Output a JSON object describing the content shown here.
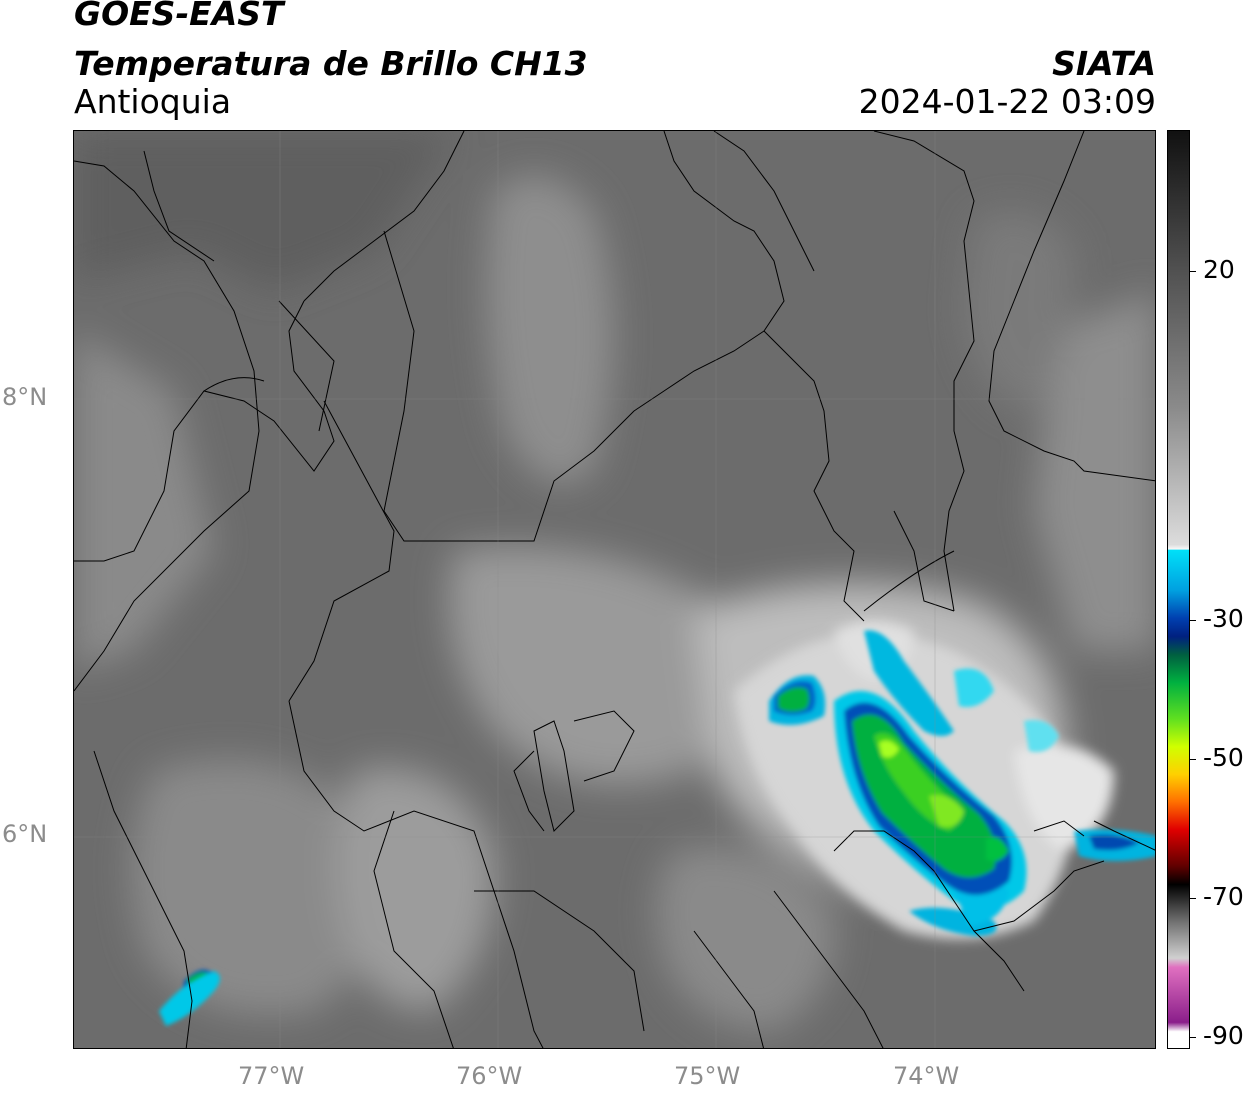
{
  "header": {
    "satellite": "GOES-EAST",
    "product": "Temperatura de Brillo CH13",
    "region": "Antioquia",
    "organization": "SIATA",
    "datetime": "2024-01-22 03:09"
  },
  "axes": {
    "lat_labels": [
      "8°N",
      "6°N"
    ],
    "lon_labels": [
      "77°W",
      "76°W",
      "75°W",
      "74°W"
    ]
  },
  "colorbar": {
    "tick_labels": [
      "20",
      "-30",
      "-50",
      "-70",
      "-90"
    ],
    "colors": {
      "warm_gray": "#6a6a6a",
      "light_gray": "#d8d8d8",
      "cyan": "#00d4f0",
      "blue": "#0032a0",
      "green": "#00c040",
      "lime": "#bfff00",
      "yellow": "#ffd200",
      "red": "#e00000",
      "black": "#000000",
      "pink": "#e070c0",
      "purple": "#8a1e8a"
    }
  },
  "map": {
    "background_color": "#6c6c6c",
    "cold_cloud_colors": [
      "#00c8e8",
      "#0060c8",
      "#00289a",
      "#00b040",
      "#40e020",
      "#a0ff20"
    ]
  }
}
